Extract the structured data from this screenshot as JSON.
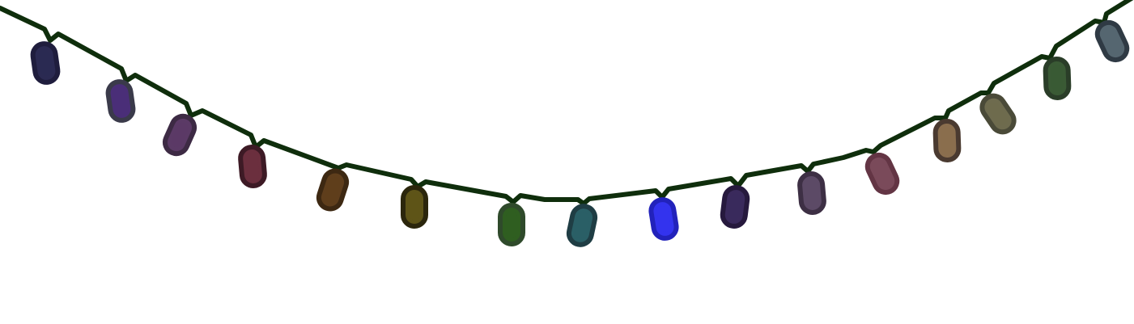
{
  "game": {
    "wire_color": "#0f2e0c",
    "bulbs": [
      {
        "id": 1,
        "fill": "#2b2a52",
        "rim": "#1f1d3d",
        "lit": false
      },
      {
        "id": 2,
        "fill": "#4a2e78",
        "rim": "#3a3a4a",
        "lit": false
      },
      {
        "id": 3,
        "fill": "#5b3a66",
        "rim": "#3d2a44",
        "lit": false
      },
      {
        "id": 4,
        "fill": "#6b2f3e",
        "rim": "#3d1a25",
        "lit": false
      },
      {
        "id": 5,
        "fill": "#5f3e1c",
        "rim": "#3d2812",
        "lit": false
      },
      {
        "id": 6,
        "fill": "#5e5418",
        "rim": "#2b260c",
        "lit": false
      },
      {
        "id": 7,
        "fill": "#2f5e20",
        "rim": "#2f4a2b",
        "lit": false
      },
      {
        "id": 8,
        "fill": "#2a5f66",
        "rim": "#1f3d44",
        "lit": false
      },
      {
        "id": 9,
        "fill": "#3333ee",
        "rim": "#2222bb",
        "lit": true
      },
      {
        "id": 10,
        "fill": "#3a2a5c",
        "rim": "#26193d",
        "lit": false
      },
      {
        "id": 11,
        "fill": "#5c4a66",
        "rim": "#3d2f44",
        "lit": false
      },
      {
        "id": 12,
        "fill": "#7a4a5a",
        "rim": "#633544",
        "lit": false
      },
      {
        "id": 13,
        "fill": "#8a6e4e",
        "rim": "#4a3a30",
        "lit": false
      },
      {
        "id": 14,
        "fill": "#6e6b4e",
        "rim": "#4a4a38",
        "lit": false
      },
      {
        "id": 15,
        "fill": "#3a5a35",
        "rim": "#2a3d28",
        "lit": false
      },
      {
        "id": 16,
        "fill": "#556670",
        "rim": "#2f3a44",
        "lit": false
      }
    ]
  }
}
